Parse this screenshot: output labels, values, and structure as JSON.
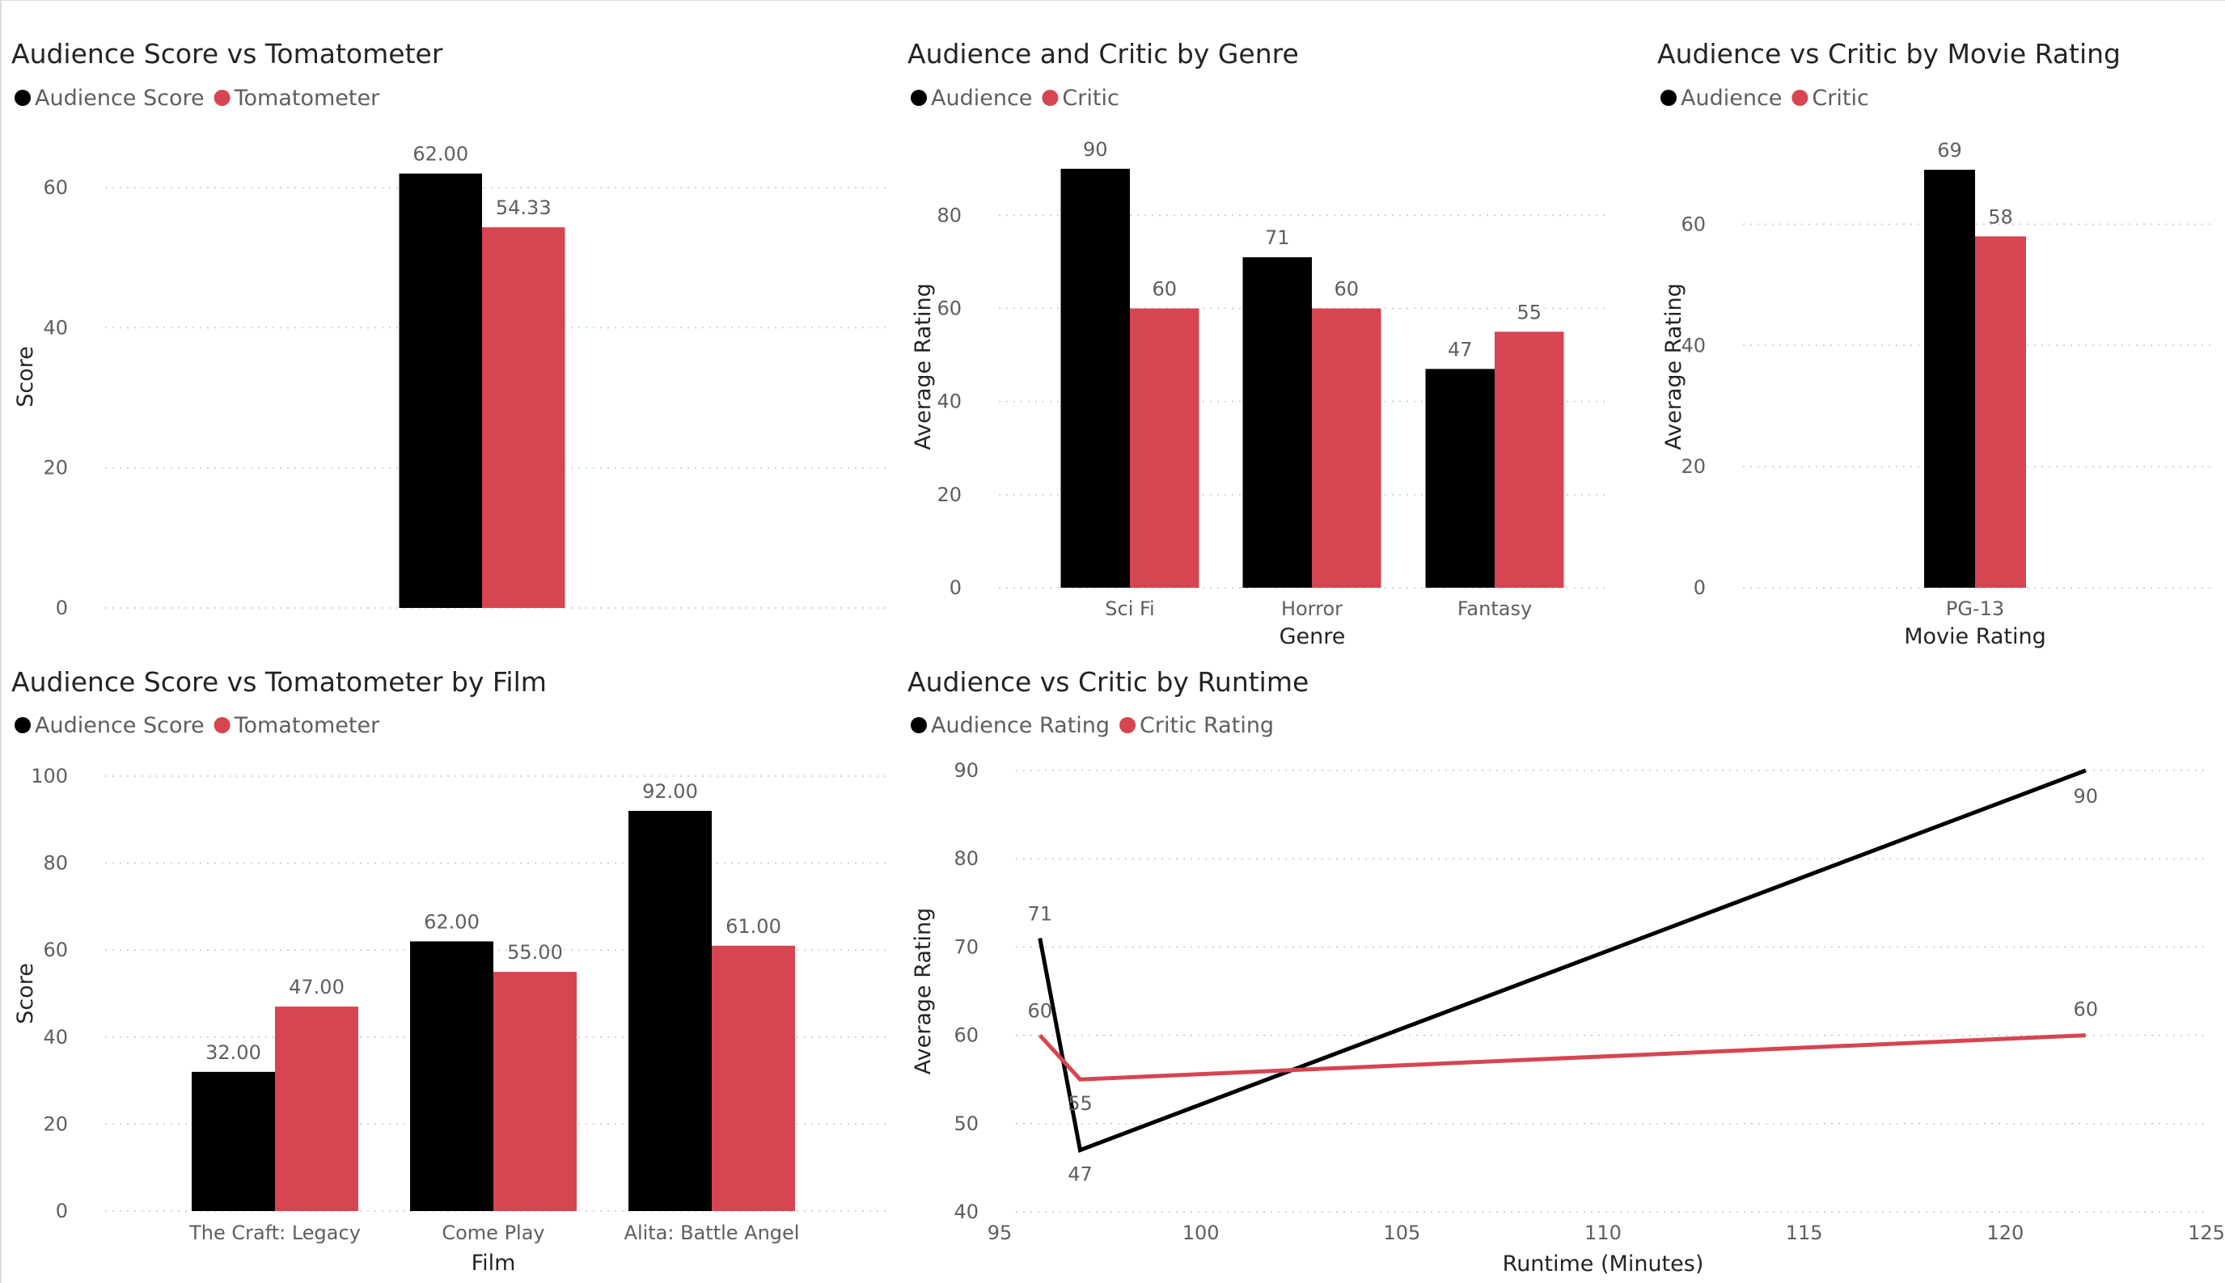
{
  "colors": {
    "audience": "#000000",
    "critic": "#d64550",
    "background": "#ffffff"
  },
  "chart_data": [
    {
      "id": "audience-vs-tomatometer",
      "type": "bar",
      "title": "Audience Score vs Tomatometer",
      "legend": [
        "Audience Score",
        "Tomatometer"
      ],
      "categories": [
        ""
      ],
      "series": [
        {
          "name": "Audience Score",
          "values": [
            62.0
          ],
          "labels": [
            "62.00"
          ]
        },
        {
          "name": "Tomatometer",
          "values": [
            54.33
          ],
          "labels": [
            "54.33"
          ]
        }
      ],
      "xlabel": "",
      "ylabel": "Score",
      "ylim": [
        0,
        66
      ],
      "yticks": [
        0,
        20,
        40,
        60
      ],
      "grid": true,
      "legend_position": "top-left"
    },
    {
      "id": "critic-by-genre",
      "type": "bar",
      "title": "Audience and Critic by Genre",
      "legend": [
        "Audience",
        "Critic"
      ],
      "categories": [
        "Sci Fi",
        "Horror",
        "Fantasy"
      ],
      "series": [
        {
          "name": "Audience",
          "values": [
            90,
            71,
            47
          ],
          "labels": [
            "90",
            "71",
            "47"
          ]
        },
        {
          "name": "Critic",
          "values": [
            60,
            60,
            55
          ],
          "labels": [
            "60",
            "60",
            "55"
          ]
        }
      ],
      "xlabel": "Genre",
      "ylabel": "Average Rating",
      "ylim": [
        0,
        95
      ],
      "yticks": [
        0,
        20,
        40,
        60,
        80
      ],
      "grid": true,
      "legend_position": "top-left"
    },
    {
      "id": "critic-by-rating",
      "type": "bar",
      "title": "Audience vs Critic by Movie Rating",
      "legend": [
        "Audience",
        "Critic"
      ],
      "categories": [
        "PG-13"
      ],
      "series": [
        {
          "name": "Audience",
          "values": [
            69
          ],
          "labels": [
            "69"
          ]
        },
        {
          "name": "Critic",
          "values": [
            58
          ],
          "labels": [
            "58"
          ]
        }
      ],
      "xlabel": "Movie Rating",
      "ylabel": "Average Rating",
      "ylim": [
        0,
        73
      ],
      "yticks": [
        0,
        20,
        40,
        60
      ],
      "grid": true,
      "legend_position": "top-left"
    },
    {
      "id": "score-by-film",
      "type": "bar",
      "title": "Audience Score vs Tomatometer by Film",
      "legend": [
        "Audience Score",
        "Tomatometer"
      ],
      "categories": [
        "The Craft: Legacy",
        "Come Play",
        "Alita: Battle Angel"
      ],
      "series": [
        {
          "name": "Audience Score",
          "values": [
            32,
            62,
            92
          ],
          "labels": [
            "32.00",
            "62.00",
            "92.00"
          ]
        },
        {
          "name": "Tomatometer",
          "values": [
            47,
            55,
            61
          ],
          "labels": [
            "47.00",
            "55.00",
            "61.00"
          ]
        }
      ],
      "xlabel": "Film",
      "ylabel": "Score",
      "ylim": [
        0,
        100
      ],
      "yticks": [
        0,
        20,
        40,
        60,
        80,
        100
      ],
      "grid": true,
      "legend_position": "top-left"
    },
    {
      "id": "critic-by-runtime",
      "type": "line",
      "title": "Audience vs Critic by Runtime",
      "legend": [
        "Audience Rating",
        "Critic Rating"
      ],
      "series": [
        {
          "name": "Audience Rating",
          "x": [
            96,
            97,
            122
          ],
          "values": [
            71,
            47,
            90
          ],
          "labels": [
            "71",
            "47",
            "90"
          ]
        },
        {
          "name": "Critic Rating",
          "x": [
            96,
            97,
            122
          ],
          "values": [
            60,
            55,
            60
          ],
          "labels": [
            "60",
            "55",
            "60"
          ]
        }
      ],
      "xlabel": "Runtime (Minutes)",
      "ylabel": "Average Rating",
      "xlim": [
        95,
        125
      ],
      "ylim": [
        40,
        90
      ],
      "xticks": [
        95,
        100,
        105,
        110,
        115,
        120,
        125
      ],
      "yticks": [
        40,
        50,
        60,
        70,
        80,
        90
      ],
      "grid": true,
      "legend_position": "top-left"
    }
  ]
}
